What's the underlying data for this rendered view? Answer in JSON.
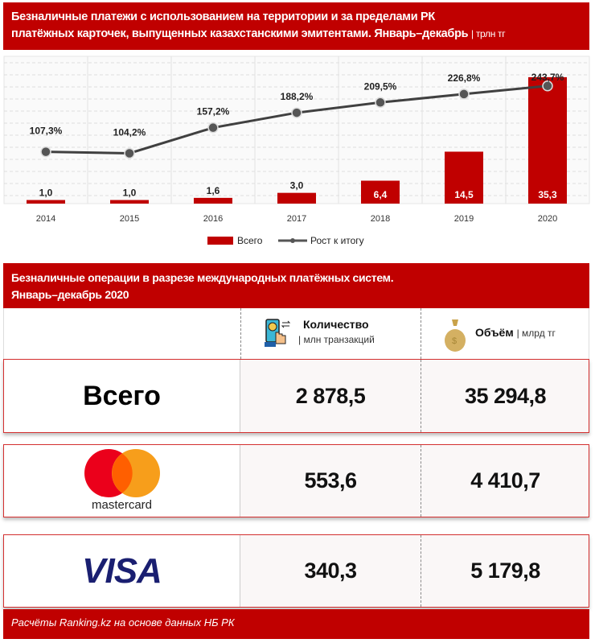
{
  "chart_title": {
    "line1": "Безналичные платежи  с использованием на территории и за пределами РК",
    "line2": "платёжных  карточек, выпущенных казахстанскими эмитентами. Январь–декабрь",
    "unit": "| трлн тг"
  },
  "chart_data": {
    "type": "bar+line",
    "categories": [
      "2014",
      "2015",
      "2016",
      "2017",
      "2018",
      "2019",
      "2020"
    ],
    "series": [
      {
        "name": "Всего",
        "type": "bar",
        "values": [
          1.0,
          1.0,
          1.6,
          3.0,
          6.4,
          14.5,
          35.3
        ],
        "labels": [
          "1,0",
          "1,0",
          "1,6",
          "3,0",
          "6,4",
          "14,5",
          "35,3"
        ],
        "color": "#c00000"
      },
      {
        "name": "Рост к итогу",
        "type": "line",
        "values": [
          107.3,
          104.2,
          157.2,
          188.2,
          209.5,
          226.8,
          243.7
        ],
        "labels": [
          "107,3%",
          "104,2%",
          "157,2%",
          "188,2%",
          "209,5%",
          "226,8%",
          "243,7%"
        ],
        "color": "#404040"
      }
    ],
    "legend": "bottom",
    "grid": true
  },
  "table": {
    "title_line1": "Безналичные операции в разрезе международных платёжных систем.",
    "title_line2": "Январь–декабрь 2020",
    "col1": {
      "label": "Количество",
      "unit": "| млн транзакций",
      "icon": "phone-payment-icon"
    },
    "col2": {
      "label": "Объём",
      "unit": "| млрд тг",
      "icon": "money-bag-icon"
    },
    "rows": [
      {
        "label": "Всего",
        "count": "2 878,5",
        "volume": "35 294,8"
      },
      {
        "label": "mastercard",
        "count": "553,6",
        "volume": "4 410,7"
      },
      {
        "label": "VISA",
        "count": "340,3",
        "volume": "5 179,8"
      }
    ]
  },
  "footer": "Расчёты Ranking.kz на основе данных  НБ РК",
  "colors": {
    "accent": "#c00000",
    "mc_red": "#eb001b",
    "mc_orange": "#f79e1b",
    "visa": "#1a1f71"
  }
}
